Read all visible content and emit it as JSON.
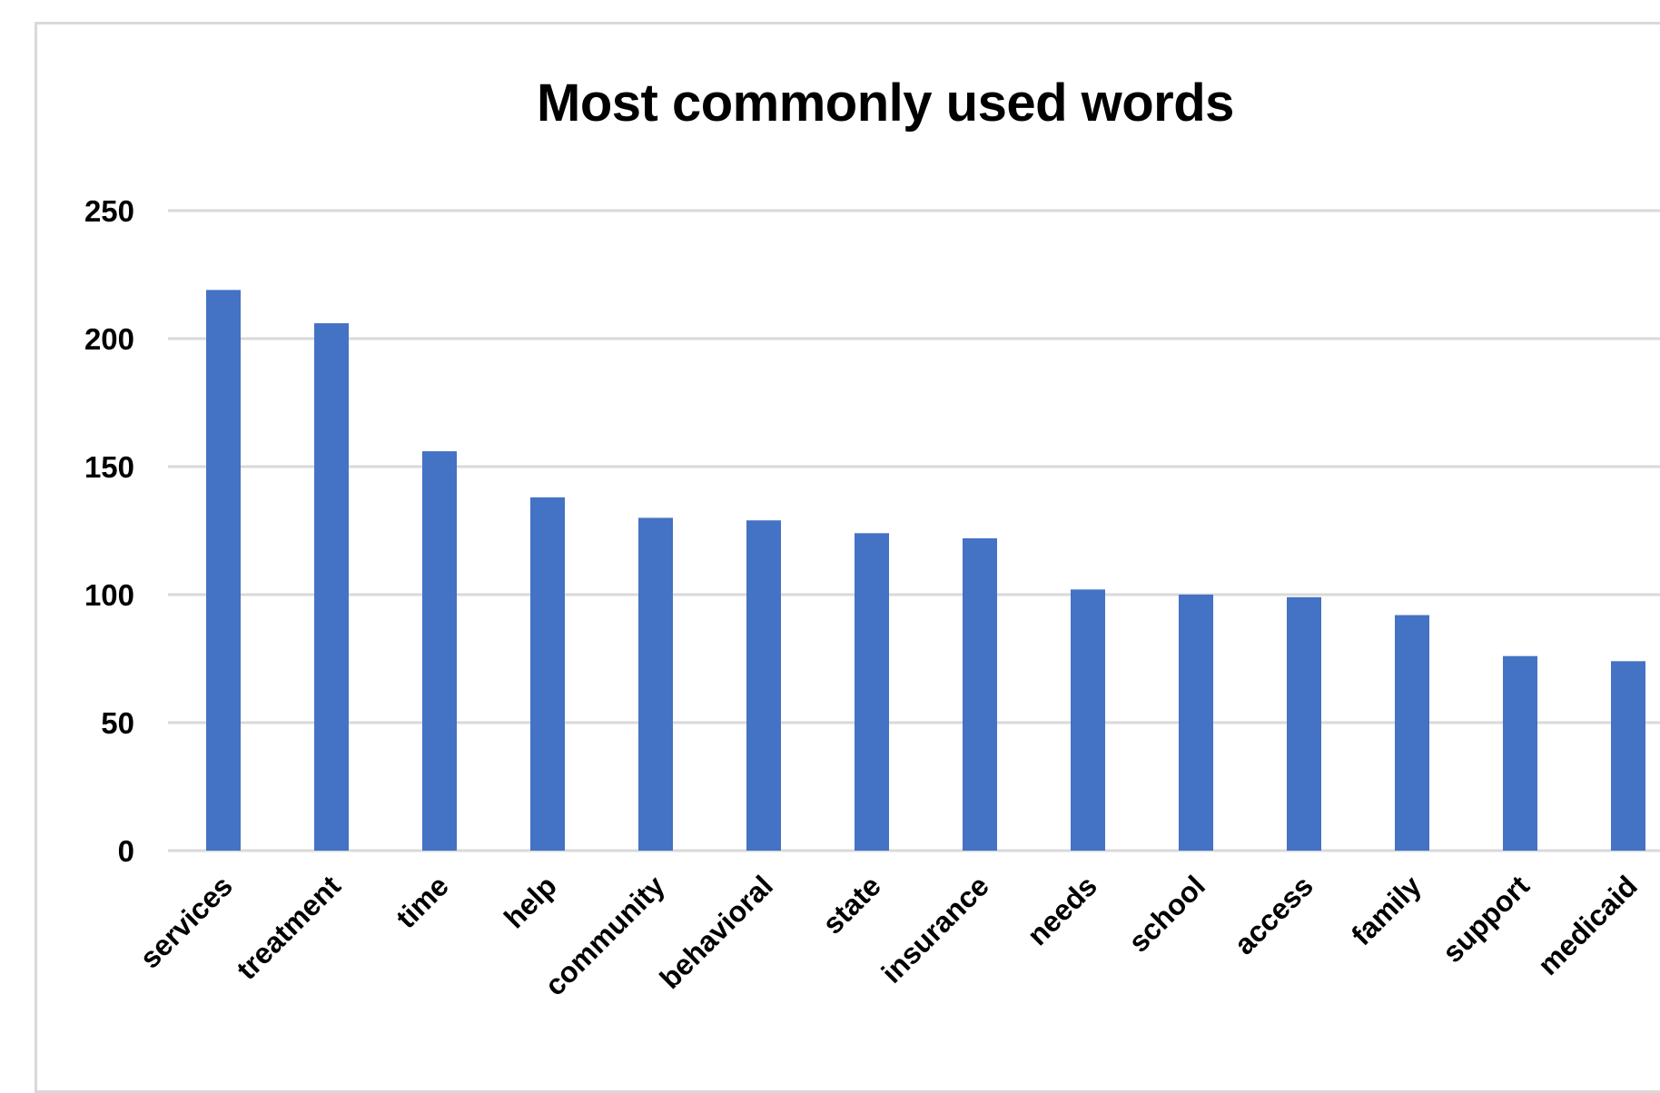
{
  "chart_data": {
    "type": "bar",
    "title": "Most commonly used words",
    "xlabel": "",
    "ylabel": "",
    "categories": [
      "services",
      "treatment",
      "time",
      "help",
      "community",
      "behavioral",
      "state",
      "insurance",
      "needs",
      "school",
      "access",
      "family",
      "support",
      "medicaid"
    ],
    "values": [
      219,
      206,
      156,
      138,
      130,
      129,
      124,
      122,
      102,
      100,
      99,
      92,
      76,
      74
    ],
    "ylim": [
      0,
      250
    ],
    "yticks": [
      0,
      50,
      100,
      150,
      200,
      250
    ],
    "grid": true,
    "legend": "none",
    "bar_color": "#4472C4",
    "grid_color": "#d9d9d9"
  }
}
